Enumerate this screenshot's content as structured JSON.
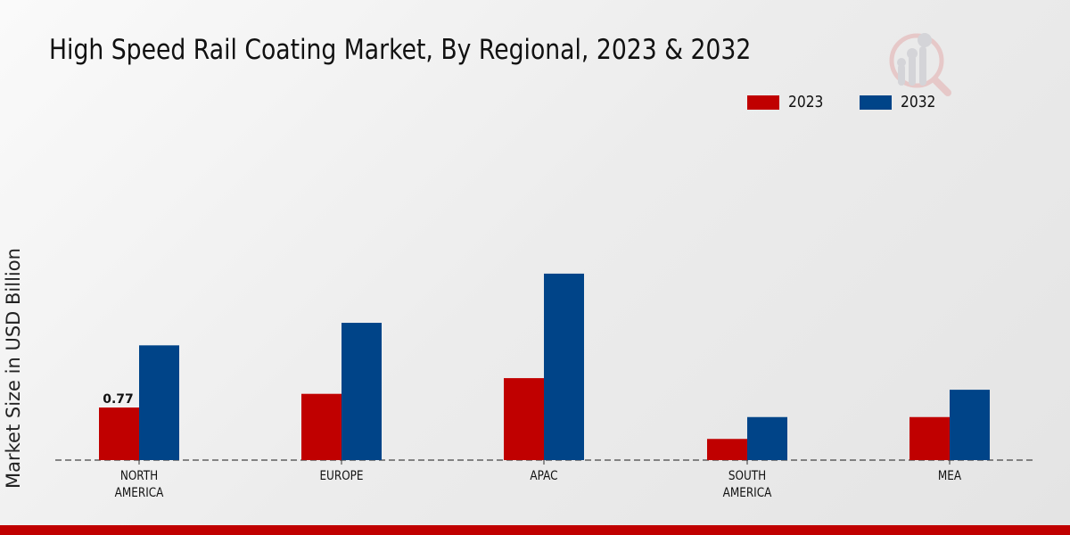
{
  "chart_data": {
    "type": "bar",
    "title": "High Speed Rail Coating Market, By Regional, 2023 & 2032",
    "xlabel": "",
    "ylabel": "Market Size in USD Billion",
    "categories": [
      "NORTH AMERICA",
      "EUROPE",
      "APAC",
      "SOUTH AMERICA",
      "MEA"
    ],
    "category_lines": [
      [
        "NORTH",
        "AMERICA"
      ],
      [
        "EUROPE"
      ],
      [
        "APAC"
      ],
      [
        "SOUTH",
        "AMERICA"
      ],
      [
        "MEA"
      ]
    ],
    "series": [
      {
        "name": "2023",
        "color": "#c00000",
        "values": [
          0.77,
          0.97,
          1.2,
          0.31,
          0.63
        ]
      },
      {
        "name": "2032",
        "color": "#004488",
        "values": [
          1.68,
          2.01,
          2.73,
          0.63,
          1.03
        ]
      }
    ],
    "data_labels": [
      {
        "series": "2023",
        "category": "NORTH AMERICA",
        "text": "0.77"
      }
    ],
    "ylim": [
      0,
      3.5
    ],
    "grid": false,
    "legend_position": "top-right"
  },
  "legend": {
    "items": [
      {
        "label": "2023",
        "color": "#c00000"
      },
      {
        "label": "2032",
        "color": "#004488"
      }
    ]
  },
  "brand": {
    "accent": "#c00000",
    "logo_icon": "magnifier-bar-chart-icon"
  }
}
